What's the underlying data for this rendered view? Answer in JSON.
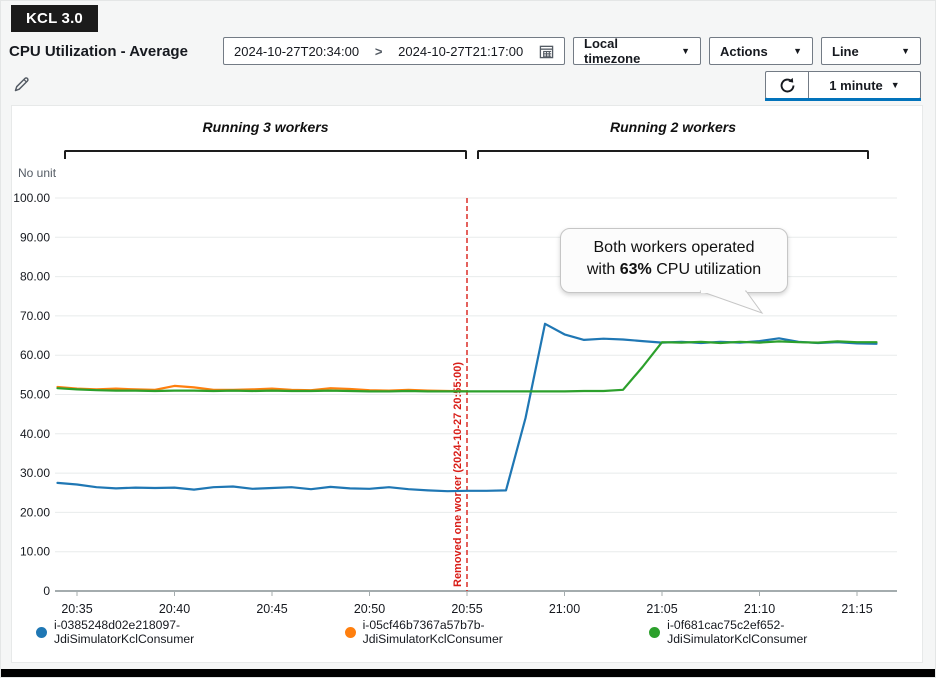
{
  "badge": {
    "label": "KCL 3.0"
  },
  "header": {
    "title": "CPU Utilization - Average",
    "date_start": "2024-10-27T20:34:00",
    "date_end": "2024-10-27T21:17:00",
    "range_separator": ">",
    "timezone": "Local timezone",
    "actions": "Actions",
    "chart_type": "Line",
    "refresh_interval": "1 minute"
  },
  "annotations": {
    "left_phase_label": "Running 3 workers",
    "right_phase_label": "Running 2 workers",
    "event_line_label": "Removed one worker (2024-10-27 20:55:00)",
    "callout": {
      "line1": "Both workers operated",
      "line2_prefix": "with ",
      "line2_bold": "63%",
      "line2_suffix": " CPU utilization"
    }
  },
  "chart_data": {
    "type": "line",
    "title": "CPU Utilization - Average",
    "ylabel": "No unit",
    "ylim": [
      0,
      100
    ],
    "grid": true,
    "legend_position": "bottom",
    "x_start_time": "20:34",
    "x_end_time": "21:16",
    "y_ticks": [
      {
        "label": "100.00",
        "value": 100
      },
      {
        "label": "90.00",
        "value": 90
      },
      {
        "label": "80.00",
        "value": 80
      },
      {
        "label": "70.00",
        "value": 70
      },
      {
        "label": "60.00",
        "value": 60
      },
      {
        "label": "50.00",
        "value": 50
      },
      {
        "label": "40.00",
        "value": 40
      },
      {
        "label": "30.00",
        "value": 30
      },
      {
        "label": "20.00",
        "value": 20
      },
      {
        "label": "10.00",
        "value": 10
      },
      {
        "label": "0",
        "value": 0
      }
    ],
    "x_ticks": [
      {
        "label": "20:35",
        "minute": 1
      },
      {
        "label": "20:40",
        "minute": 6
      },
      {
        "label": "20:45",
        "minute": 11
      },
      {
        "label": "20:50",
        "minute": 16
      },
      {
        "label": "20:55",
        "minute": 21
      },
      {
        "label": "21:00",
        "minute": 26
      },
      {
        "label": "21:05",
        "minute": 31
      },
      {
        "label": "21:10",
        "minute": 36
      },
      {
        "label": "21:15",
        "minute": 41
      }
    ],
    "event_line": {
      "minute": 21,
      "time": "20:55",
      "color": "#d91e18"
    },
    "series": [
      {
        "name": "i-0385248d02e218097-JdiSimulatorKclConsumer",
        "color": "#1f77b4",
        "x_start_minute": 0,
        "values": [
          27.5,
          27.1,
          26.4,
          26.1,
          26.3,
          26.2,
          26.3,
          25.8,
          26.4,
          26.6,
          26.0,
          26.2,
          26.4,
          25.9,
          26.5,
          26.1,
          26.0,
          26.4,
          25.9,
          25.6,
          25.4,
          25.5,
          25.5,
          25.6,
          44.0,
          68.0,
          65.3,
          63.9,
          64.2,
          64.0,
          63.6,
          63.2,
          63.4,
          63.1,
          63.4,
          63.2,
          63.6,
          64.3,
          63.4,
          63.1,
          63.3,
          63.0,
          62.9
        ]
      },
      {
        "name": "i-05cf46b7367a57b7b-JdiSimulatorKclConsumer",
        "color": "#ff7f0e",
        "x_start_minute": 0,
        "values": [
          51.9,
          51.5,
          51.3,
          51.5,
          51.3,
          51.2,
          52.2,
          51.8,
          51.2,
          51.2,
          51.3,
          51.5,
          51.2,
          51.1,
          51.6,
          51.4,
          51.1,
          51.0,
          51.2,
          51.0,
          50.9,
          50.8
        ]
      },
      {
        "name": "i-0f681cac75c2ef652-JdiSimulatorKclConsumer",
        "color": "#2ca02c",
        "x_start_minute": 0,
        "values": [
          51.6,
          51.3,
          51.1,
          51.0,
          51.0,
          50.9,
          51.0,
          51.0,
          50.9,
          51.0,
          50.9,
          51.0,
          50.9,
          50.9,
          51.0,
          50.9,
          50.8,
          50.8,
          50.9,
          50.8,
          50.8,
          50.8,
          50.8,
          50.8,
          50.8,
          50.8,
          50.8,
          50.9,
          50.9,
          51.2,
          57.0,
          63.3,
          63.2,
          63.4,
          63.1,
          63.4,
          63.2,
          63.5,
          63.3,
          63.2,
          63.5,
          63.3,
          63.3
        ]
      }
    ]
  }
}
